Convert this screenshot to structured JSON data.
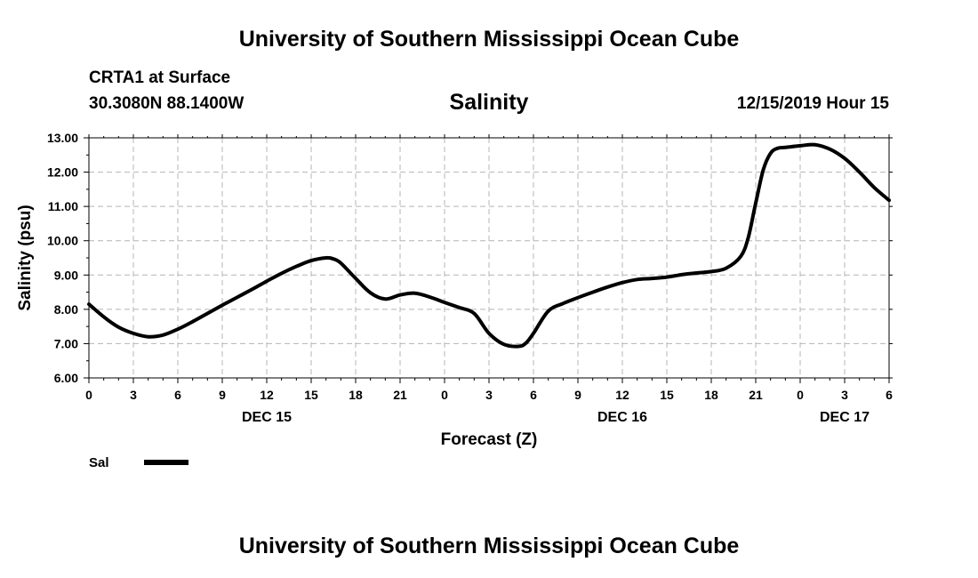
{
  "header": {
    "title": "University of Southern Mississippi Ocean Cube",
    "station": "CRTA1 at Surface",
    "coords": "30.3080N 88.1400W",
    "variable": "Salinity",
    "datetime": "12/15/2019 Hour 15"
  },
  "footer": {
    "title": "University of Southern Mississippi Ocean Cube"
  },
  "chart_data": {
    "type": "line",
    "xlabel": "Forecast (Z)",
    "ylabel": "Salinity (psu)",
    "ylim": [
      6.0,
      13.0
    ],
    "xlim": [
      0,
      54
    ],
    "x_unit": "hours from 12/15/2019 00Z",
    "y_ticks": [
      "6.00",
      "7.00",
      "8.00",
      "9.00",
      "10.00",
      "11.00",
      "12.00",
      "13.00"
    ],
    "x_ticks": [
      {
        "x": 0,
        "label": "0"
      },
      {
        "x": 3,
        "label": "3"
      },
      {
        "x": 6,
        "label": "6"
      },
      {
        "x": 9,
        "label": "9"
      },
      {
        "x": 12,
        "label": "12"
      },
      {
        "x": 15,
        "label": "15"
      },
      {
        "x": 18,
        "label": "18"
      },
      {
        "x": 21,
        "label": "21"
      },
      {
        "x": 24,
        "label": "0"
      },
      {
        "x": 27,
        "label": "3"
      },
      {
        "x": 30,
        "label": "6"
      },
      {
        "x": 33,
        "label": "9"
      },
      {
        "x": 36,
        "label": "12"
      },
      {
        "x": 39,
        "label": "15"
      },
      {
        "x": 42,
        "label": "18"
      },
      {
        "x": 45,
        "label": "21"
      },
      {
        "x": 48,
        "label": "0"
      },
      {
        "x": 51,
        "label": "3"
      },
      {
        "x": 54,
        "label": "6"
      }
    ],
    "day_labels": [
      {
        "x": 12,
        "label": "DEC 15"
      },
      {
        "x": 36,
        "label": "DEC 16"
      },
      {
        "x": 51,
        "label": "DEC 17"
      }
    ],
    "grid": true,
    "legend_position": "bottom-left",
    "series": [
      {
        "name": "Sal",
        "color": "#000000",
        "x": [
          0,
          1,
          2,
          3,
          4,
          5,
          6,
          7,
          8,
          9,
          10,
          11,
          12,
          13,
          14,
          15,
          16,
          16.5,
          17,
          18,
          19,
          20,
          21,
          22,
          23,
          24,
          25,
          26,
          27,
          28,
          29,
          29.5,
          30,
          31,
          32,
          33,
          34,
          35,
          36,
          37,
          38,
          39,
          40,
          41,
          42,
          43,
          44,
          44.5,
          45,
          45.5,
          46,
          46.5,
          47,
          48,
          49,
          50,
          51,
          52,
          53,
          54
        ],
        "values": [
          8.15,
          7.78,
          7.48,
          7.3,
          7.2,
          7.25,
          7.42,
          7.64,
          7.88,
          8.12,
          8.35,
          8.58,
          8.82,
          9.05,
          9.25,
          9.42,
          9.5,
          9.47,
          9.35,
          8.9,
          8.48,
          8.3,
          8.42,
          8.47,
          8.36,
          8.2,
          8.05,
          7.88,
          7.3,
          6.98,
          6.92,
          7.02,
          7.3,
          7.95,
          8.17,
          8.34,
          8.5,
          8.65,
          8.78,
          8.87,
          8.9,
          8.94,
          9.01,
          9.06,
          9.1,
          9.2,
          9.55,
          10.1,
          11.1,
          12.05,
          12.55,
          12.7,
          12.72,
          12.77,
          12.8,
          12.67,
          12.4,
          12.0,
          11.55,
          11.18
        ]
      }
    ]
  }
}
